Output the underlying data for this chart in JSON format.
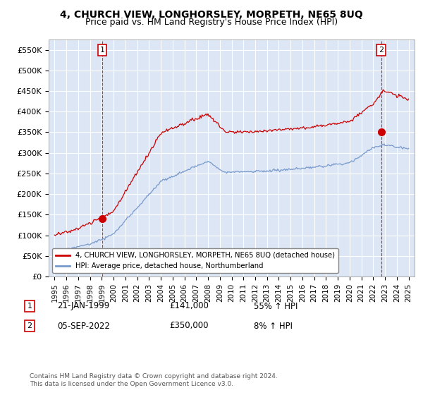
{
  "title": "4, CHURCH VIEW, LONGHORSLEY, MORPETH, NE65 8UQ",
  "subtitle": "Price paid vs. HM Land Registry's House Price Index (HPI)",
  "title_fontsize": 10,
  "subtitle_fontsize": 9,
  "plot_bg_color": "#dce6f5",
  "ylim": [
    0,
    575000
  ],
  "yticks": [
    0,
    50000,
    100000,
    150000,
    200000,
    250000,
    300000,
    350000,
    400000,
    450000,
    500000,
    550000
  ],
  "ytick_labels": [
    "£0",
    "£50K",
    "£100K",
    "£150K",
    "£200K",
    "£250K",
    "£300K",
    "£350K",
    "£400K",
    "£450K",
    "£500K",
    "£550K"
  ],
  "red_line_color": "#cc0000",
  "blue_line_color": "#7799cc",
  "sale1_x": 1999.05,
  "sale1_y": 141000,
  "sale1_label": "1",
  "sale1_date": "21-JAN-1999",
  "sale1_price": "£141,000",
  "sale1_hpi": "55% ↑ HPI",
  "sale2_x": 2022.67,
  "sale2_y": 350000,
  "sale2_label": "2",
  "sale2_date": "05-SEP-2022",
  "sale2_price": "£350,000",
  "sale2_hpi": "8% ↑ HPI",
  "legend_line1": "4, CHURCH VIEW, LONGHORSLEY, MORPETH, NE65 8UQ (detached house)",
  "legend_line2": "HPI: Average price, detached house, Northumberland",
  "footer": "Contains HM Land Registry data © Crown copyright and database right 2024.\nThis data is licensed under the Open Government Licence v3.0.",
  "xtick_years": [
    1995,
    1996,
    1997,
    1998,
    1999,
    2000,
    2001,
    2002,
    2003,
    2004,
    2005,
    2006,
    2007,
    2008,
    2009,
    2010,
    2011,
    2012,
    2013,
    2014,
    2015,
    2016,
    2017,
    2018,
    2019,
    2020,
    2021,
    2022,
    2023,
    2024,
    2025
  ]
}
